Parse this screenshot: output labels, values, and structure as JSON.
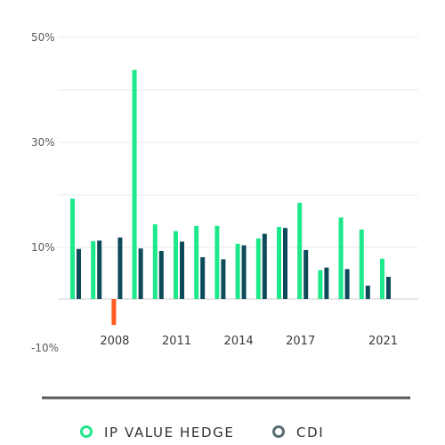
{
  "chart_data": {
    "type": "bar",
    "title": "",
    "xlabel": "",
    "ylabel": "",
    "ylim": [
      -10,
      50
    ],
    "y_ticks": [
      "50%",
      "30%",
      "10%",
      "-10%"
    ],
    "y_tick_values": [
      50,
      30,
      10,
      -10
    ],
    "grid": "horizontal",
    "legend_position": "bottom",
    "categories": [
      "2006",
      "2007",
      "2008",
      "2009",
      "2010",
      "2011",
      "2012",
      "2013",
      "2014",
      "2015",
      "2016",
      "2017",
      "2018",
      "2019",
      "2020",
      "2021",
      "2022"
    ],
    "x_tick_labels": [
      {
        "category": "2008",
        "label": "2008"
      },
      {
        "category": "2011",
        "label": "2011"
      },
      {
        "category": "2014",
        "label": "2014"
      },
      {
        "category": "2017",
        "label": "2017"
      },
      {
        "category": "2021",
        "label": "2021"
      }
    ],
    "series": [
      {
        "name": "IP VALUE HEDGE",
        "color": "#1de88a",
        "negative_color": "#ff5a1f",
        "values": [
          19.3,
          11.2,
          -5.3,
          43.8,
          14.4,
          13.1,
          14.1,
          14.1,
          10.7,
          11.7,
          13.9,
          18.5,
          5.6,
          15.7,
          13.4,
          7.8,
          0
        ]
      },
      {
        "name": "CDI",
        "color": "#0d4a5a",
        "values": [
          9.7,
          11.3,
          11.9,
          9.8,
          9.3,
          11.1,
          8.1,
          7.7,
          10.4,
          12.6,
          13.7,
          9.5,
          6.1,
          5.8,
          2.6,
          4.3,
          0
        ]
      }
    ]
  },
  "legend": {
    "items": [
      {
        "label": "IP VALUE HEDGE",
        "color": "#1de88a"
      },
      {
        "label": "CDI",
        "color": "#5a6b73"
      }
    ]
  },
  "colors": {
    "grid": "#e8e8e8",
    "axis": "#cfcfcf",
    "separator": "#5a5a5a"
  }
}
